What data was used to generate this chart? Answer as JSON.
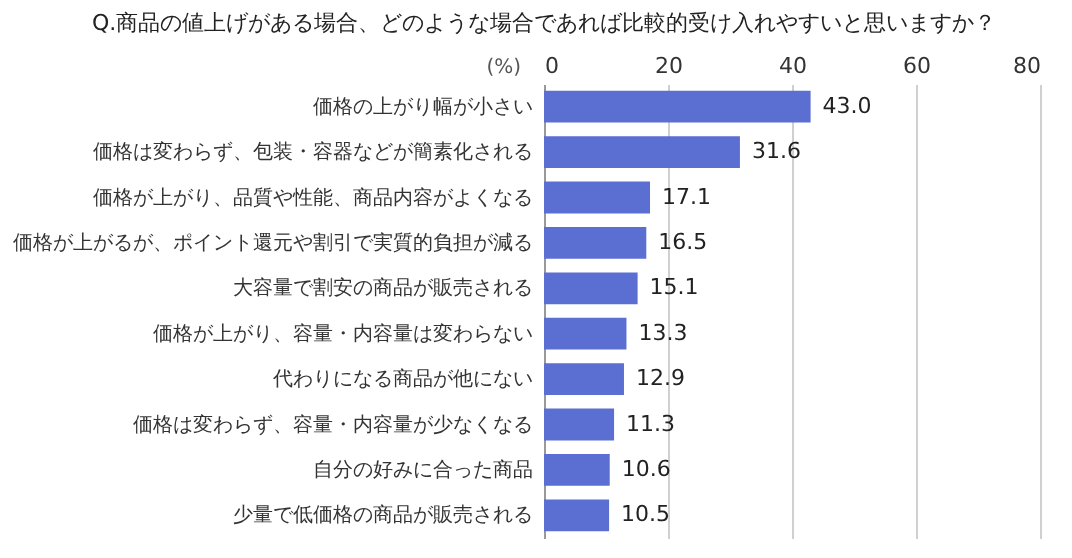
{
  "chart_data": {
    "type": "bar",
    "orientation": "horizontal",
    "title": "Q.商品の値上げがある場合、どのような場合であれば比較的受け入れやすいと思いますか？",
    "xlabel": "(%)",
    "categories": [
      "価格の上がり幅が小さい",
      "価格は変わらず、包装・容器などが簡素化される",
      "価格が上がり、品質や性能、商品内容がよくなる",
      "価格が上がるが、ポイント還元や割引で実質的負担が減る",
      "大容量で割安の商品が販売される",
      "価格が上がり、容量・内容量は変わらない",
      "代わりになる商品が他にない",
      "価格は変わらず、容量・内容量が少なくなる",
      "自分の好みに合った商品",
      "少量で低価格の商品が販売される"
    ],
    "values": [
      43.0,
      31.6,
      17.1,
      16.5,
      15.1,
      13.3,
      12.9,
      11.3,
      10.6,
      10.5
    ],
    "color": "#5b6fd3",
    "xlim": [
      0,
      80
    ],
    "xticks": [
      0,
      20,
      40,
      60,
      80
    ],
    "grid": "x",
    "value_labels": [
      "43.0",
      "31.6",
      "17.1",
      "16.5",
      "15.1",
      "13.3",
      "12.9",
      "11.3",
      "10.6",
      "10.5"
    ]
  }
}
